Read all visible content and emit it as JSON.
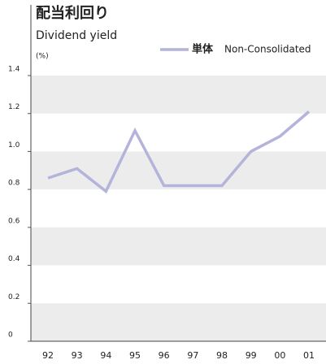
{
  "chart_data": {
    "type": "line",
    "title": "配当利回り",
    "subtitle": "Dividend yield",
    "y_unit": "(%)",
    "categories": [
      "92",
      "93",
      "94",
      "95",
      "96",
      "97",
      "98",
      "99",
      "00",
      "01"
    ],
    "series": [
      {
        "name": "単体",
        "name_en": "Non-Consolidated",
        "color": "#b4b4da",
        "values": [
          0.86,
          0.91,
          0.79,
          1.11,
          0.82,
          0.82,
          0.82,
          1.0,
          1.08,
          1.21
        ]
      }
    ],
    "ylim": [
      0,
      1.4
    ],
    "yticks": [
      0,
      0.2,
      0.4,
      0.6,
      0.8,
      {
        "value": 1.0,
        "label": "1.0"
      },
      1.2,
      1.4
    ],
    "grid": "bands",
    "legend": "top-right"
  }
}
